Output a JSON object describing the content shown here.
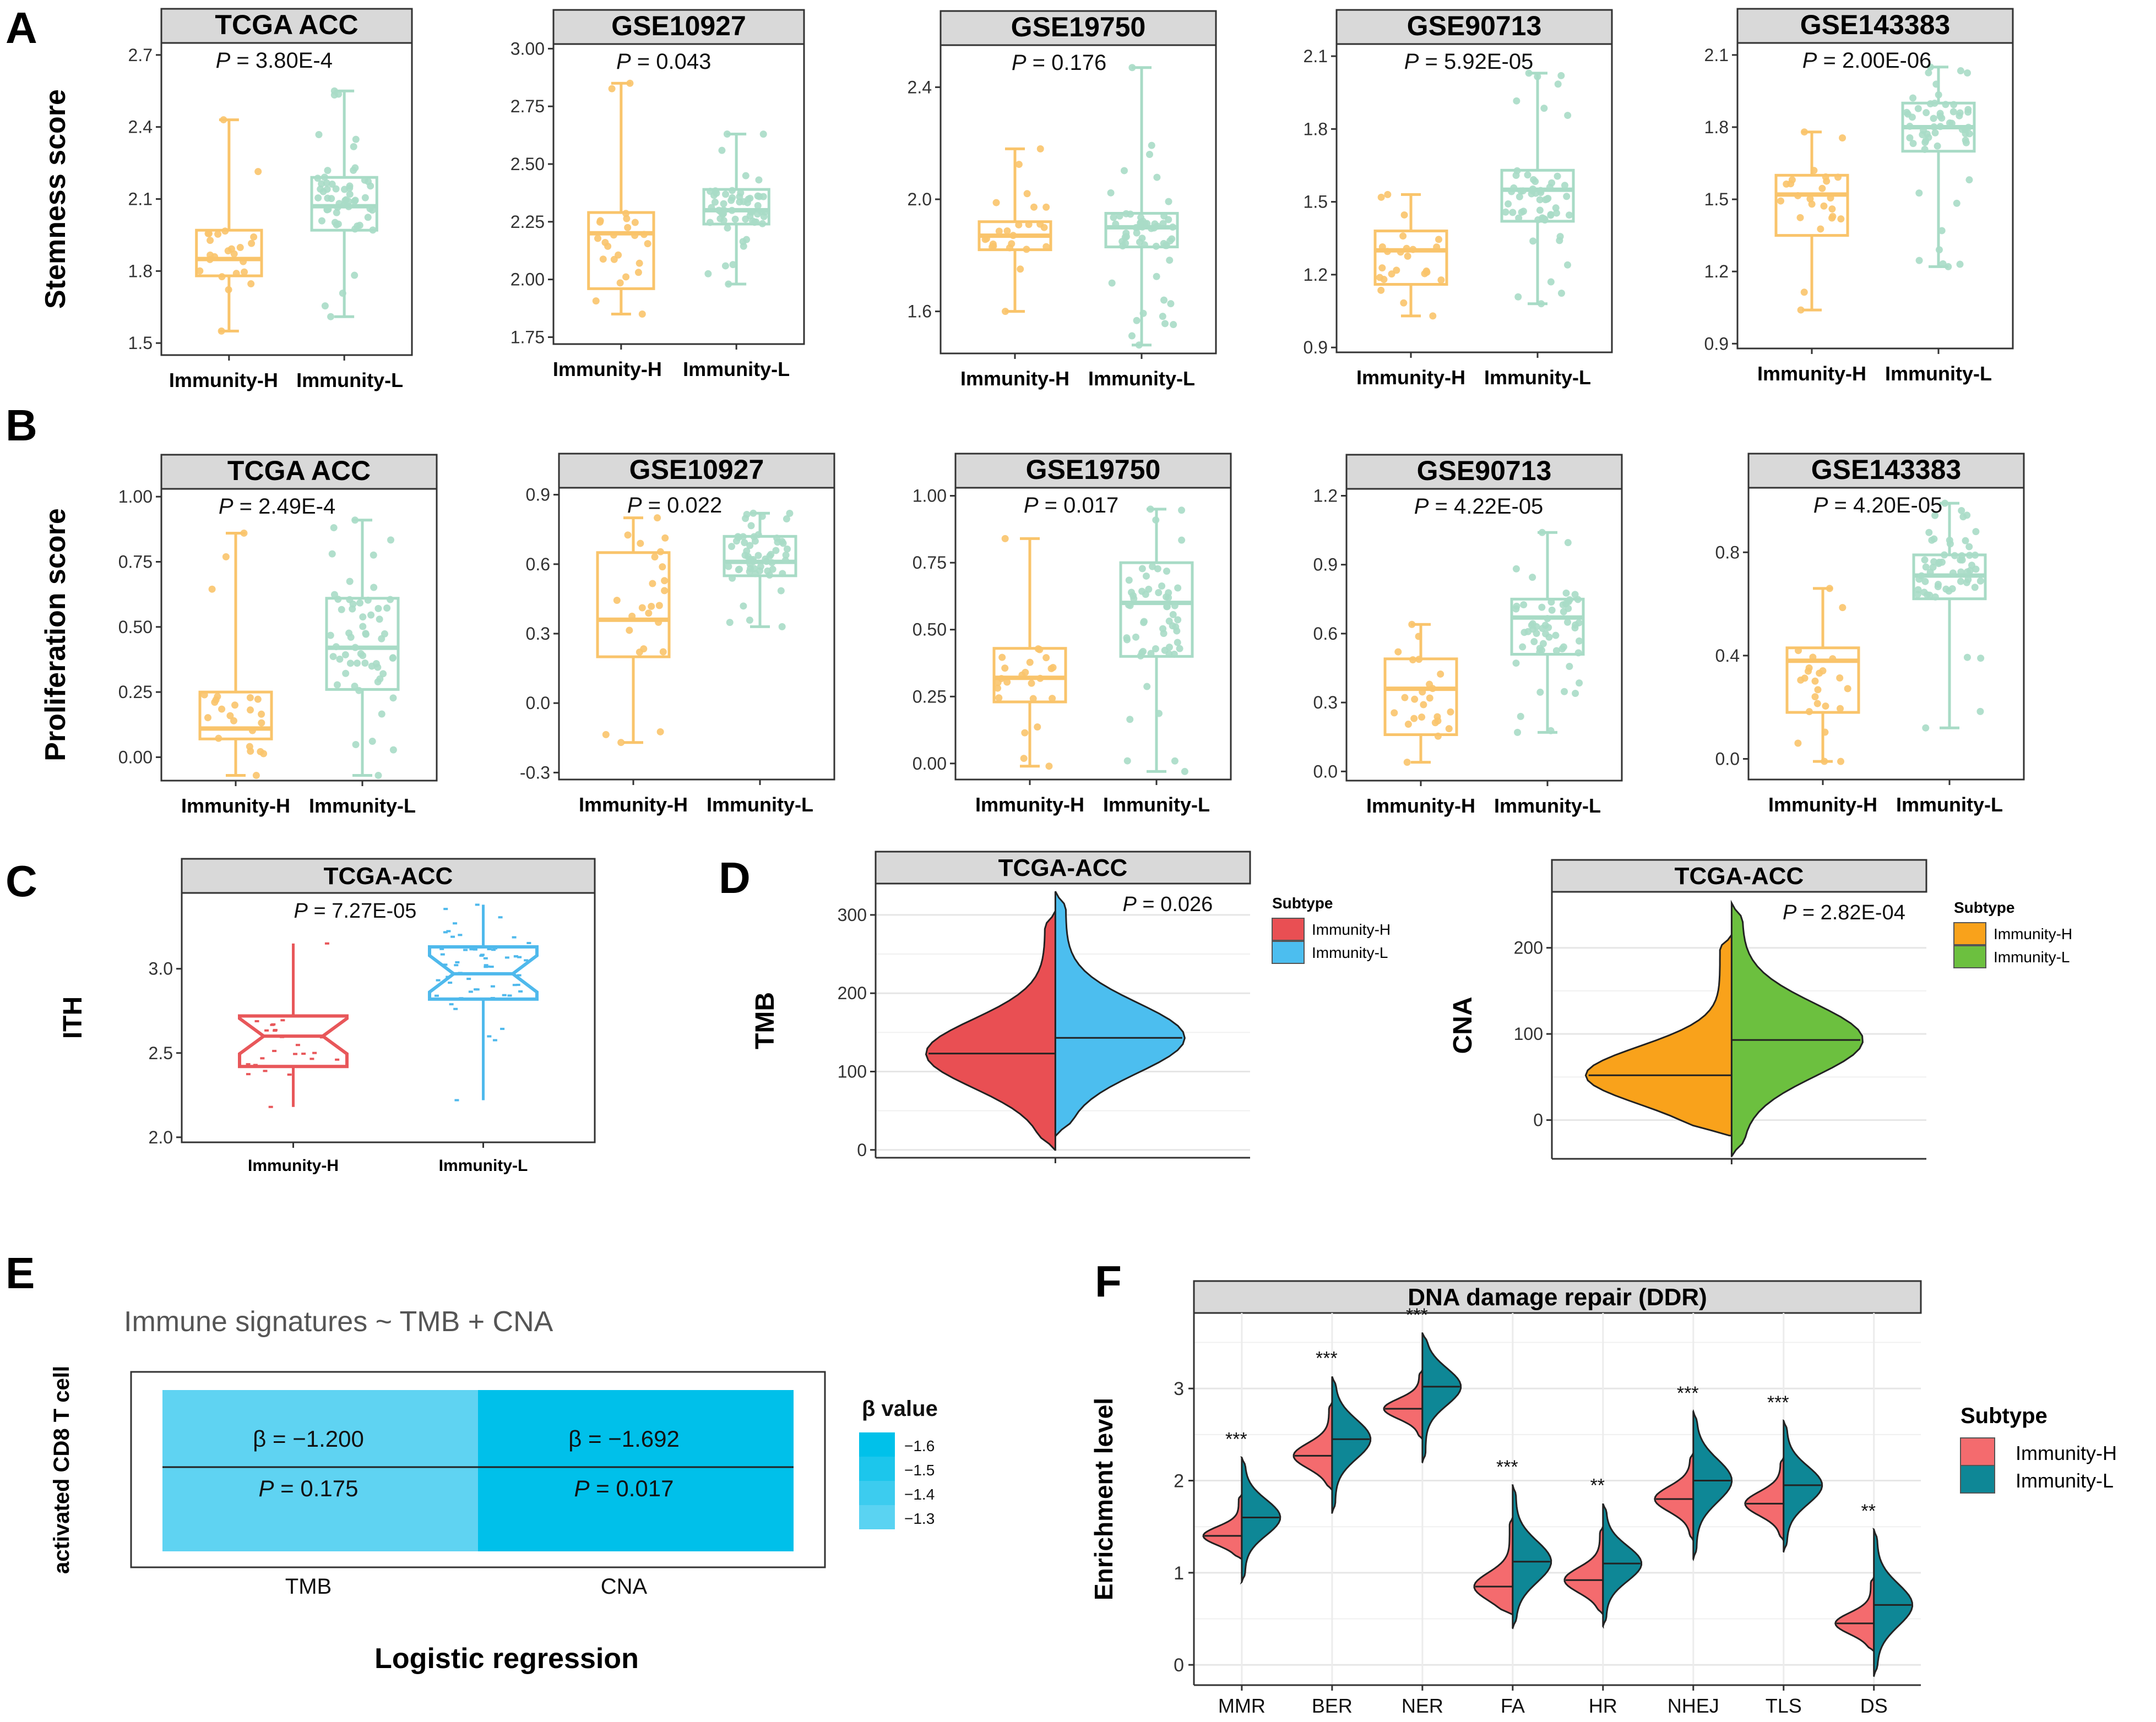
{
  "panel_labels": [
    "A",
    "B",
    "C",
    "D",
    "E",
    "F"
  ],
  "colors": {
    "immunity_h_box": "#F9C46B",
    "immunity_l_box": "#A8DBC6",
    "c_h": "#E8575A",
    "c_l": "#4FB9EC",
    "d_h": "#E94F53",
    "d_l": "#4CBEEF",
    "d2_h": "#F9A21B",
    "d2_l": "#6CC03F",
    "f_h": "#F46B6E",
    "f_l": "#0E8796",
    "strip_fill": "#D9D9D9",
    "e_tmb": "#5FD3F2",
    "e_cna": "#00C0EA"
  },
  "chart_data": [
    {
      "panel": "A",
      "type": "box",
      "title": "TCGA ACC",
      "ylabel": "Stemness score",
      "categories": [
        "Immunity-H",
        "Immunity-L"
      ],
      "p_label": "P",
      "p_value": " = 3.80E-4",
      "yticks": [
        "1.5",
        "1.8",
        "2.1",
        "2.4",
        "2.7"
      ],
      "ylim": [
        1.45,
        2.75
      ],
      "boxes": [
        {
          "name": "Immunity-H",
          "min": 1.55,
          "q1": 1.78,
          "median": 1.85,
          "q3": 1.97,
          "max": 2.43
        },
        {
          "name": "Immunity-L",
          "min": 1.61,
          "q1": 1.97,
          "median": 2.07,
          "q3": 2.19,
          "max": 2.55
        }
      ]
    },
    {
      "panel": "A",
      "type": "box",
      "title": "GSE10927",
      "ylabel": "",
      "categories": [
        "Immunity-H",
        "Immunity-L"
      ],
      "p_label": "P",
      "p_value": " = 0.043",
      "yticks": [
        "1.75",
        "2.00",
        "2.25",
        "2.50",
        "2.75",
        "3.00"
      ],
      "ylim": [
        1.72,
        3.02
      ],
      "boxes": [
        {
          "name": "Immunity-H",
          "min": 1.85,
          "q1": 1.96,
          "median": 2.2,
          "q3": 2.29,
          "max": 2.85
        },
        {
          "name": "Immunity-L",
          "min": 1.98,
          "q1": 2.24,
          "median": 2.3,
          "q3": 2.39,
          "max": 2.63
        }
      ]
    },
    {
      "panel": "A",
      "type": "box",
      "title": "GSE19750",
      "ylabel": "",
      "categories": [
        "Immunity-H",
        "Immunity-L"
      ],
      "p_label": "P",
      "p_value": " = 0.176",
      "yticks": [
        "1.6",
        "2.0",
        "2.4"
      ],
      "ylim": [
        1.45,
        2.55
      ],
      "boxes": [
        {
          "name": "Immunity-H",
          "min": 1.6,
          "q1": 1.82,
          "median": 1.87,
          "q3": 1.92,
          "max": 2.18
        },
        {
          "name": "Immunity-L",
          "min": 1.48,
          "q1": 1.83,
          "median": 1.9,
          "q3": 1.95,
          "max": 2.47
        }
      ]
    },
    {
      "panel": "A",
      "type": "box",
      "title": "GSE90713",
      "ylabel": "",
      "categories": [
        "Immunity-H",
        "Immunity-L"
      ],
      "p_label": "P",
      "p_value": " = 5.92E-05",
      "yticks": [
        "0.9",
        "1.2",
        "1.5",
        "1.8",
        "2.1"
      ],
      "ylim": [
        0.88,
        2.15
      ],
      "boxes": [
        {
          "name": "Immunity-H",
          "min": 1.03,
          "q1": 1.16,
          "median": 1.3,
          "q3": 1.38,
          "max": 1.53
        },
        {
          "name": "Immunity-L",
          "min": 1.08,
          "q1": 1.42,
          "median": 1.55,
          "q3": 1.63,
          "max": 2.03
        }
      ]
    },
    {
      "panel": "A",
      "type": "box",
      "title": "GSE143383",
      "ylabel": "",
      "categories": [
        "Immunity-H",
        "Immunity-L"
      ],
      "p_label": "P",
      "p_value": " = 2.00E-06",
      "yticks": [
        "0.9",
        "1.2",
        "1.5",
        "1.8",
        "2.1"
      ],
      "ylim": [
        0.88,
        2.15
      ],
      "boxes": [
        {
          "name": "Immunity-H",
          "min": 1.04,
          "q1": 1.35,
          "median": 1.52,
          "q3": 1.6,
          "max": 1.78
        },
        {
          "name": "Immunity-L",
          "min": 1.22,
          "q1": 1.7,
          "median": 1.8,
          "q3": 1.9,
          "max": 2.05
        }
      ]
    },
    {
      "panel": "B",
      "type": "box",
      "title": "TCGA ACC",
      "ylabel": "Proliferation score",
      "categories": [
        "Immunity-H",
        "Immunity-L"
      ],
      "p_label": "P",
      "p_value": " = 2.49E-4",
      "yticks": [
        "0.00",
        "0.25",
        "0.50",
        "0.75",
        "1.00"
      ],
      "ylim": [
        -0.09,
        1.03
      ],
      "boxes": [
        {
          "name": "Immunity-H",
          "min": -0.07,
          "q1": 0.07,
          "median": 0.11,
          "q3": 0.25,
          "max": 0.86
        },
        {
          "name": "Immunity-L",
          "min": -0.07,
          "q1": 0.26,
          "median": 0.42,
          "q3": 0.61,
          "max": 0.91
        }
      ]
    },
    {
      "panel": "B",
      "type": "box",
      "title": "GSE10927",
      "ylabel": "",
      "categories": [
        "Immunity-H",
        "Immunity-L"
      ],
      "p_label": "P",
      "p_value": " = 0.022",
      "yticks": [
        "-0.3",
        "0.0",
        "0.3",
        "0.6",
        "0.9"
      ],
      "ylim": [
        -0.33,
        0.93
      ],
      "boxes": [
        {
          "name": "Immunity-H",
          "min": -0.17,
          "q1": 0.2,
          "median": 0.36,
          "q3": 0.65,
          "max": 0.8
        },
        {
          "name": "Immunity-L",
          "min": 0.33,
          "q1": 0.55,
          "median": 0.61,
          "q3": 0.72,
          "max": 0.82
        }
      ]
    },
    {
      "panel": "B",
      "type": "box",
      "title": "GSE19750",
      "ylabel": "",
      "categories": [
        "Immunity-H",
        "Immunity-L"
      ],
      "p_label": "P",
      "p_value": " = 0.017",
      "yticks": [
        "0.00",
        "0.25",
        "0.50",
        "0.75",
        "1.00"
      ],
      "ylim": [
        -0.06,
        1.03
      ],
      "boxes": [
        {
          "name": "Immunity-H",
          "min": -0.01,
          "q1": 0.23,
          "median": 0.32,
          "q3": 0.43,
          "max": 0.84
        },
        {
          "name": "Immunity-L",
          "min": -0.03,
          "q1": 0.4,
          "median": 0.6,
          "q3": 0.75,
          "max": 0.95
        }
      ]
    },
    {
      "panel": "B",
      "type": "box",
      "title": "GSE90713",
      "ylabel": "",
      "categories": [
        "Immunity-H",
        "Immunity-L"
      ],
      "p_label": "P",
      "p_value": " = 4.22E-05",
      "yticks": [
        "0.0",
        "0.3",
        "0.6",
        "0.9",
        "1.2"
      ],
      "ylim": [
        -0.04,
        1.23
      ],
      "boxes": [
        {
          "name": "Immunity-H",
          "min": 0.04,
          "q1": 0.16,
          "median": 0.36,
          "q3": 0.49,
          "max": 0.64
        },
        {
          "name": "Immunity-L",
          "min": 0.17,
          "q1": 0.51,
          "median": 0.67,
          "q3": 0.75,
          "max": 1.04
        }
      ]
    },
    {
      "panel": "B",
      "type": "box",
      "title": "GSE143383",
      "ylabel": "",
      "categories": [
        "Immunity-H",
        "Immunity-L"
      ],
      "p_label": "P",
      "p_value": " = 4.20E-05",
      "yticks": [
        "0.0",
        "0.4",
        "0.8"
      ],
      "ylim": [
        -0.08,
        1.05
      ],
      "boxes": [
        {
          "name": "Immunity-H",
          "min": -0.01,
          "q1": 0.18,
          "median": 0.38,
          "q3": 0.43,
          "max": 0.66
        },
        {
          "name": "Immunity-L",
          "min": 0.12,
          "q1": 0.62,
          "median": 0.71,
          "q3": 0.79,
          "max": 0.99
        }
      ]
    },
    {
      "panel": "C",
      "type": "notched-box",
      "title": "TCGA-ACC",
      "ylabel": "ITH",
      "categories": [
        "Immunity-H",
        "Immunity-L"
      ],
      "p_label": "P",
      "p_value": " = 7.27E-05",
      "yticks": [
        "2.0",
        "2.5",
        "3.0"
      ],
      "ylim": [
        1.97,
        3.45
      ],
      "boxes": [
        {
          "name": "Immunity-H",
          "min": 2.18,
          "q1": 2.42,
          "median": 2.6,
          "q3": 2.72,
          "max": 3.15
        },
        {
          "name": "Immunity-L",
          "min": 2.22,
          "q1": 2.82,
          "median": 2.97,
          "q3": 3.13,
          "max": 3.38
        }
      ]
    },
    {
      "panel": "D",
      "type": "split-violin",
      "title": "TCGA-ACC",
      "ylabel": "TMB",
      "p_label": "P",
      "p_value": " = 0.026",
      "yticks": [
        "0",
        "100",
        "200",
        "300"
      ],
      "ylim": [
        -10,
        340
      ],
      "series": [
        {
          "name": "Immunity-H",
          "min": 0,
          "median": 123,
          "max": 305,
          "mode": 123,
          "width": 1.0
        },
        {
          "name": "Immunity-L",
          "min": 18,
          "median": 143,
          "max": 330,
          "mode": 143,
          "width": 1.0
        }
      ],
      "legend_title": "Subtype",
      "legend": [
        "Immunity-H",
        "Immunity-L"
      ]
    },
    {
      "panel": "D",
      "type": "split-violin",
      "title": "TCGA-ACC",
      "ylabel": "CNA",
      "p_label": "P",
      "p_value": " = 2.82E-04",
      "yticks": [
        "0",
        "100",
        "200"
      ],
      "ylim": [
        -45,
        265
      ],
      "series": [
        {
          "name": "Immunity-H",
          "min": -18,
          "median": 52,
          "max": 215,
          "mode": 52,
          "width": 1.0
        },
        {
          "name": "Immunity-L",
          "min": -42,
          "median": 93,
          "max": 252,
          "mode": 93,
          "width": 0.9
        }
      ],
      "legend_title": "Subtype",
      "legend": [
        "Immunity-H",
        "Immunity-L"
      ]
    },
    {
      "panel": "E",
      "type": "heatmap",
      "title": "Immune signatures ~ TMB + CNA",
      "ylabel": "activated CD8 T cell",
      "xlabel": "Logistic regression",
      "columns": [
        "TMB",
        "CNA"
      ],
      "cells": [
        {
          "column": "TMB",
          "beta": -1.2,
          "beta_label": "β = −1.200",
          "p_label": "P",
          "p_value": " = 0.175"
        },
        {
          "column": "CNA",
          "beta": -1.692,
          "beta_label": "β = −1.692",
          "p_label": "P",
          "p_value": " = 0.017"
        }
      ],
      "legend_title": "β value",
      "legend_ticks": [
        "−1.6",
        "−1.5",
        "−1.4",
        "−1.3"
      ]
    },
    {
      "panel": "F",
      "type": "split-violin",
      "title": "DNA damage repair (DDR)",
      "ylabel": "Enrichment level",
      "categories": [
        "MMR",
        "BER",
        "NER",
        "FA",
        "HR",
        "NHEJ",
        "TLS",
        "DS"
      ],
      "significance": [
        "***",
        "***",
        "***",
        "***",
        "**",
        "***",
        "***",
        "**"
      ],
      "yticks": [
        "0",
        "1",
        "2",
        "3"
      ],
      "ylim": [
        -0.22,
        3.82
      ],
      "series": [
        {
          "name": "Immunity-H",
          "min": [
            1.15,
            1.9,
            2.45,
            0.55,
            0.55,
            1.35,
            1.35,
            0.15
          ],
          "median": [
            1.4,
            2.27,
            2.78,
            0.85,
            0.92,
            1.8,
            1.75,
            0.45
          ],
          "max": [
            1.85,
            2.85,
            3.2,
            1.6,
            1.5,
            2.3,
            2.25,
            0.95
          ]
        },
        {
          "name": "Immunity-L",
          "min": [
            0.9,
            1.65,
            2.2,
            0.4,
            0.42,
            1.15,
            1.23,
            -0.12
          ],
          "median": [
            1.6,
            2.45,
            3.02,
            1.12,
            1.1,
            2.0,
            1.95,
            0.65
          ],
          "max": [
            2.25,
            3.13,
            3.6,
            1.95,
            1.75,
            2.75,
            2.65,
            1.47
          ]
        }
      ],
      "legend_title": "Subtype",
      "legend": [
        "Immunity-H",
        "Immunity-L"
      ]
    }
  ]
}
